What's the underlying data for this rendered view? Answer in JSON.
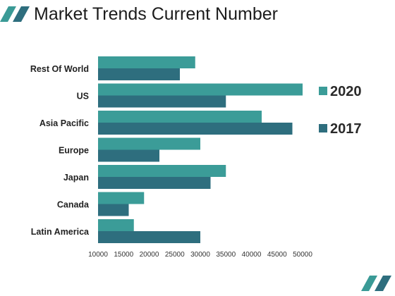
{
  "title": "Market Trends Current Number",
  "colors": {
    "accent": "#3a9a96",
    "series_2020": "#3b9c98",
    "series_2017": "#2e6e7e",
    "text": "#1c1c1c"
  },
  "icons": {
    "top_left": "double-slash-stripes-icon",
    "bottom_right": "double-slash-stripes-icon"
  },
  "chart_data": {
    "type": "bar",
    "orientation": "horizontal",
    "title": "",
    "xlabel": "",
    "ylabel": "",
    "categories": [
      "Rest Of World",
      "US",
      "Asia Pacific",
      "Europe",
      "Japan",
      "Canada",
      "Latin America"
    ],
    "series": [
      {
        "name": "2020",
        "values": [
          29000,
          50000,
          42000,
          30000,
          35000,
          19000,
          17000
        ]
      },
      {
        "name": "2017",
        "values": [
          26000,
          35000,
          48000,
          22000,
          32000,
          16000,
          30000
        ]
      }
    ],
    "xlim": [
      10000,
      50000
    ],
    "xticks": [
      10000,
      15000,
      20000,
      25000,
      30000,
      35000,
      40000,
      45000,
      50000
    ],
    "grid": false,
    "legend_position": "right"
  }
}
